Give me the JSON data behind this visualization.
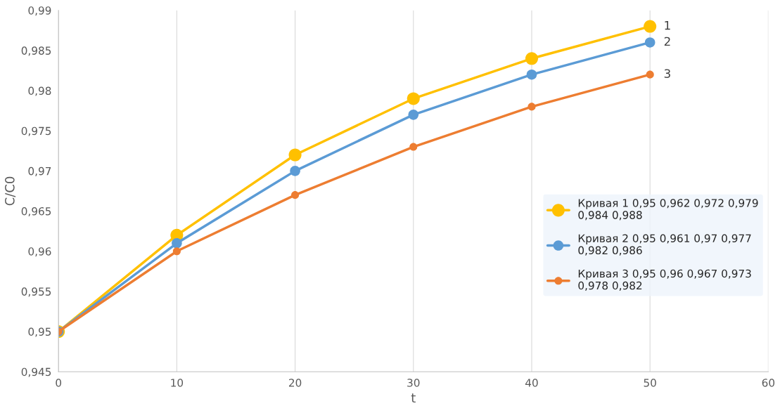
{
  "chart_data": {
    "type": "line",
    "xlabel": "t",
    "ylabel": "C/C0",
    "x": [
      0,
      10,
      20,
      30,
      40,
      50
    ],
    "series": [
      {
        "name": "Кривая 1 0,95 0,962 0,972 0,979\n0,984 0,988",
        "color": "#ffc000",
        "values": [
          0.95,
          0.962,
          0.972,
          0.979,
          0.984,
          0.988
        ]
      },
      {
        "name": "Кривая 2 0,95 0,961 0,97 0,977\n0,982 0,986",
        "color": "#5b9bd5",
        "values": [
          0.95,
          0.961,
          0.97,
          0.977,
          0.982,
          0.986
        ]
      },
      {
        "name": "Кривая 3 0,95 0,96 0,967 0,973\n0,978 0,982",
        "color": "#ed7d31",
        "values": [
          0.95,
          0.96,
          0.967,
          0.973,
          0.978,
          0.982
        ]
      }
    ],
    "annotations": [
      "1",
      "2",
      "3"
    ],
    "xlim": [
      0,
      60
    ],
    "xticks": [
      0,
      10,
      20,
      30,
      40,
      50,
      60
    ],
    "ylim": [
      0.945,
      0.99
    ],
    "yticks": [
      {
        "value": 0.945,
        "label": "0,945"
      },
      {
        "value": 0.95,
        "label": "0,95"
      },
      {
        "value": 0.955,
        "label": "0,955"
      },
      {
        "value": 0.96,
        "label": "0,96"
      },
      {
        "value": 0.965,
        "label": "0,965"
      },
      {
        "value": 0.97,
        "label": "0,97"
      },
      {
        "value": 0.975,
        "label": "0,975"
      },
      {
        "value": 0.98,
        "label": "0,98"
      },
      {
        "value": 0.985,
        "label": "0,985"
      },
      {
        "value": 0.99,
        "label": "0,99"
      }
    ],
    "grid": "x",
    "legend": "center right",
    "marker": "circle",
    "line_style": "solid"
  }
}
